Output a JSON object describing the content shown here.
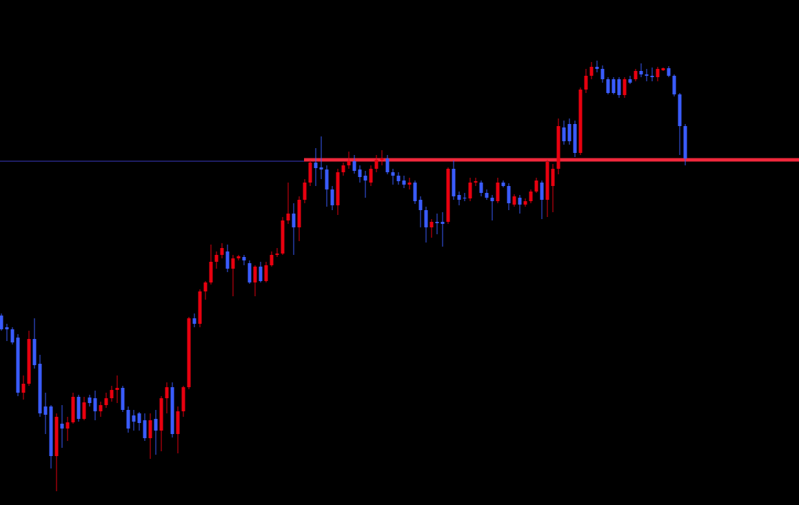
{
  "chart_data": {
    "type": "candlestick",
    "up_color": "#e8000f",
    "down_color": "#3a5cff",
    "ylim": [
      0,
      733
    ],
    "open": [
      275,
      258,
      255,
      243,
      163,
      176,
      241,
      205,
      143,
      143,
      71,
      118,
      111,
      120,
      157,
      125,
      156,
      155,
      136,
      145,
      155,
      167,
      170,
      138,
      130,
      133,
      123,
      97,
      125,
      108,
      155,
      171,
      103,
      136,
      171,
      271,
      263,
      310,
      323,
      353,
      363,
      368,
      343,
      358,
      360,
      351,
      323,
      346,
      325,
      348,
      363,
      365,
      413,
      423,
      403,
      443,
      468,
      497,
      490,
      487,
      458,
      435,
      483,
      493,
      499,
      487,
      478,
      468,
      488,
      501,
      503,
      483,
      478,
      471,
      465,
      468,
      443,
      428,
      403,
      411,
      411,
      411,
      488,
      450,
      446,
      445,
      468,
      468,
      453,
      446,
      441,
      468,
      463,
      436,
      446,
      436,
      441,
      455,
      468,
      443,
      463,
      488,
      548,
      553,
      553,
      511,
      603,
      623,
      636,
      633,
      618,
      618,
      618,
      595,
      618,
      618,
      630,
      625,
      623,
      621,
      631,
      634,
      623,
      596,
      550
    ],
    "high": [
      278,
      263,
      258,
      248,
      188,
      253,
      271,
      218,
      163,
      145,
      133,
      145,
      128,
      163,
      160,
      157,
      160,
      166,
      150,
      163,
      173,
      188,
      173,
      143,
      138,
      135,
      133,
      133,
      138,
      158,
      178,
      178,
      143,
      173,
      273,
      278,
      313,
      325,
      378,
      368,
      380,
      378,
      363,
      363,
      363,
      355,
      348,
      353,
      353,
      368,
      373,
      418,
      468,
      438,
      448,
      473,
      500,
      518,
      535,
      493,
      463,
      488,
      497,
      513,
      508,
      493,
      485,
      493,
      508,
      515,
      508,
      488,
      483,
      478,
      475,
      471,
      448,
      433,
      415,
      423,
      425,
      490,
      500,
      455,
      453,
      475,
      475,
      471,
      458,
      450,
      475,
      471,
      467,
      451,
      450,
      445,
      458,
      475,
      471,
      501,
      495,
      561,
      558,
      561,
      558,
      606,
      633,
      643,
      645,
      638,
      621,
      621,
      621,
      621,
      623,
      633,
      641,
      633,
      635,
      636,
      635,
      637,
      625,
      598,
      553
    ],
    "low": [
      253,
      238,
      233,
      158,
      153,
      173,
      198,
      128,
      103,
      53,
      20,
      83,
      93,
      118,
      121,
      123,
      143,
      123,
      128,
      141,
      150,
      148,
      135,
      105,
      108,
      108,
      93,
      67,
      73,
      78,
      133,
      98,
      75,
      128,
      168,
      258,
      258,
      298,
      320,
      343,
      358,
      338,
      303,
      355,
      348,
      321,
      303,
      323,
      323,
      346,
      360,
      363,
      408,
      363,
      383,
      438,
      463,
      463,
      473,
      433,
      428,
      421,
      478,
      488,
      481,
      468,
      446,
      463,
      483,
      493,
      480,
      465,
      465,
      460,
      458,
      437,
      403,
      381,
      388,
      393,
      375,
      408,
      443,
      435,
      441,
      441,
      463,
      448,
      443,
      413,
      438,
      461,
      428,
      433,
      423,
      433,
      438,
      453,
      415,
      418,
      425,
      480,
      523,
      523,
      505,
      508,
      598,
      618,
      628,
      613,
      596,
      596,
      591,
      591,
      611,
      615,
      621,
      615,
      615,
      615,
      630,
      621,
      593,
      508,
      493
    ],
    "close": [
      255,
      255,
      236,
      163,
      176,
      241,
      203,
      133,
      131,
      71,
      128,
      111,
      120,
      157,
      125,
      149,
      148,
      136,
      145,
      155,
      167,
      170,
      138,
      111,
      121,
      119,
      97,
      123,
      108,
      155,
      171,
      103,
      136,
      171,
      271,
      263,
      310,
      323,
      353,
      363,
      373,
      343,
      358,
      361,
      355,
      323,
      346,
      325,
      348,
      363,
      365,
      413,
      423,
      403,
      443,
      468,
      497,
      489,
      487,
      458,
      435,
      483,
      493,
      499,
      485,
      476,
      471,
      488,
      501,
      503,
      483,
      478,
      470,
      465,
      468,
      441,
      428,
      403,
      411,
      409,
      408,
      488,
      448,
      443,
      445,
      468,
      470,
      453,
      446,
      441,
      468,
      463,
      438,
      448,
      436,
      441,
      455,
      471,
      443,
      498,
      488,
      550,
      528,
      528,
      511,
      603,
      623,
      636,
      633,
      618,
      598,
      598,
      595,
      618,
      613,
      630,
      625,
      623,
      621,
      633,
      634,
      623,
      596,
      550,
      503
    ],
    "hlines": [
      {
        "value": 499,
        "color": "#3c3cc8"
      },
      {
        "value": 501,
        "color": "#f0283c"
      }
    ]
  }
}
